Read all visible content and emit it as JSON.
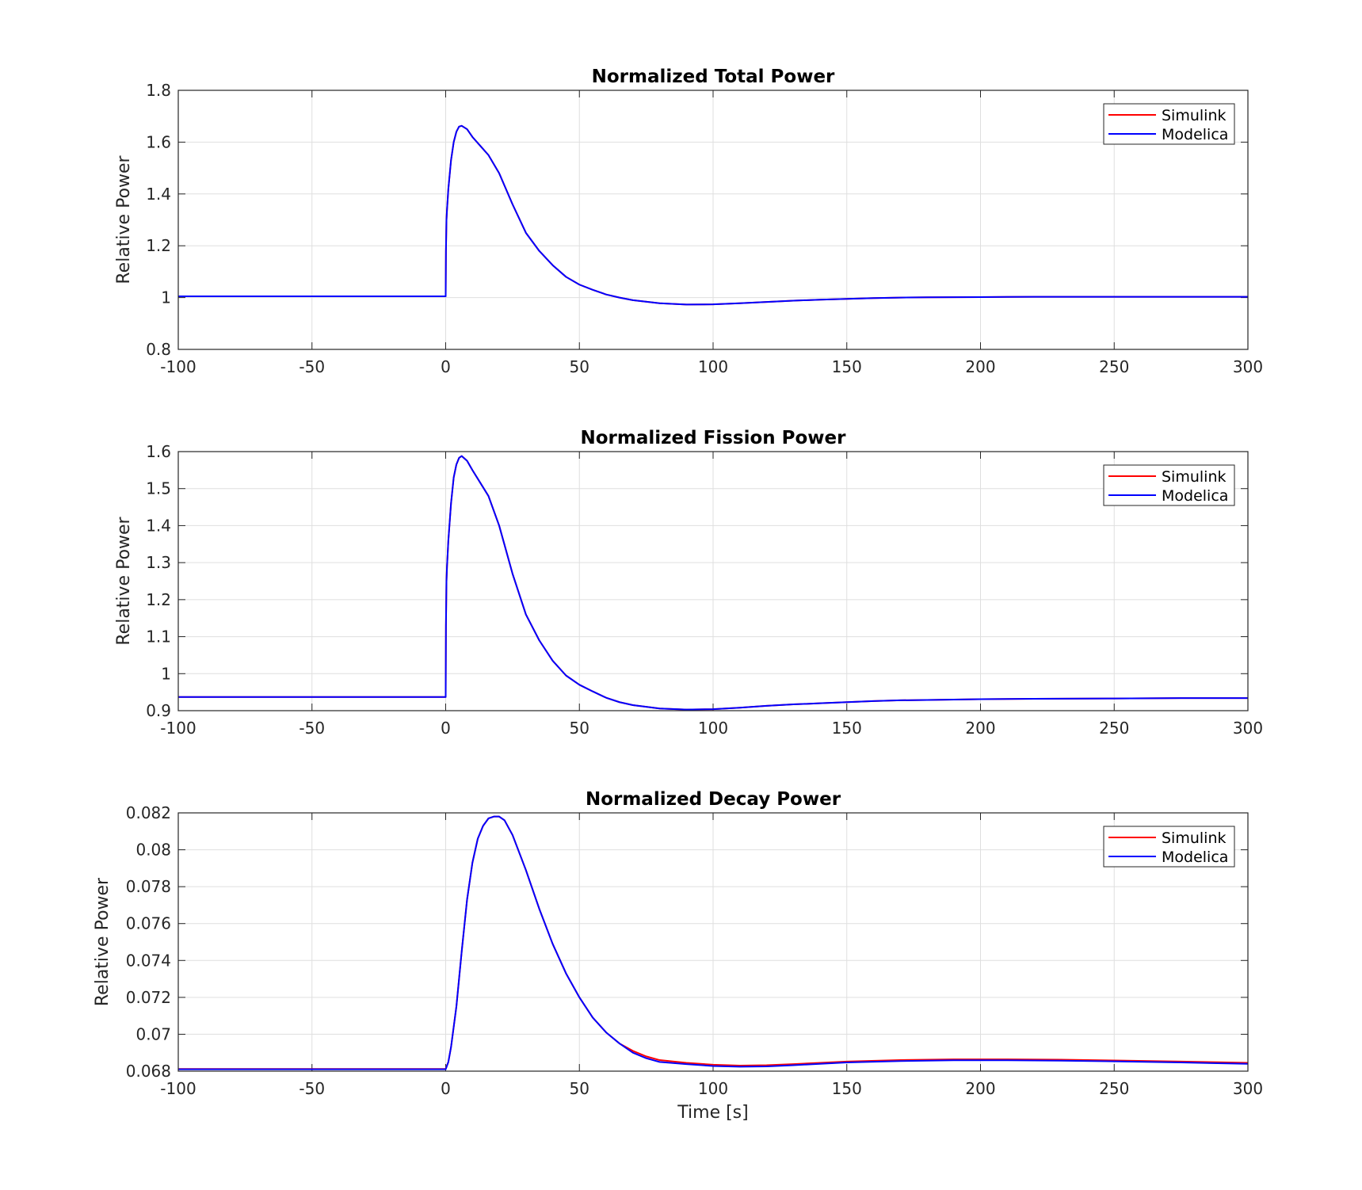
{
  "figure": {
    "xlabel": "Time [s]"
  },
  "chart_data": [
    {
      "type": "line",
      "title": "Normalized Total Power",
      "xlabel": "",
      "ylabel": "Relative Power",
      "xlim": [
        -100,
        300
      ],
      "ylim": [
        0.8,
        1.8
      ],
      "xticks": [
        "-100",
        "-50",
        "0",
        "50",
        "100",
        "150",
        "200",
        "250",
        "300"
      ],
      "yticks": [
        "0.8",
        "1",
        "1.2",
        "1.4",
        "1.6",
        "1.8"
      ],
      "grid": true,
      "legend_position": "top-right",
      "x": [
        -100,
        -50,
        -0.1,
        0,
        0.1,
        0.3,
        0.5,
        1,
        2,
        3,
        4,
        5,
        6,
        8,
        10,
        13,
        16,
        20,
        25,
        30,
        35,
        40,
        45,
        50,
        55,
        60,
        65,
        70,
        80,
        90,
        100,
        110,
        120,
        130,
        140,
        150,
        160,
        170,
        180,
        200,
        220,
        250,
        275,
        300
      ],
      "series": [
        {
          "name": "Simulink",
          "color": "#ff0000",
          "values": [
            1.005,
            1.005,
            1.005,
            1.005,
            1.18,
            1.3,
            1.34,
            1.42,
            1.53,
            1.6,
            1.64,
            1.66,
            1.663,
            1.65,
            1.62,
            1.585,
            1.55,
            1.48,
            1.36,
            1.25,
            1.18,
            1.125,
            1.08,
            1.05,
            1.03,
            1.012,
            1.0,
            0.99,
            0.978,
            0.973,
            0.974,
            0.978,
            0.983,
            0.988,
            0.992,
            0.995,
            0.998,
            1.0,
            1.001,
            1.002,
            1.003,
            1.003,
            1.003,
            1.003
          ]
        },
        {
          "name": "Modelica",
          "color": "#0000ff",
          "values": [
            1.005,
            1.005,
            1.005,
            1.005,
            1.18,
            1.3,
            1.34,
            1.42,
            1.53,
            1.6,
            1.64,
            1.66,
            1.663,
            1.65,
            1.62,
            1.585,
            1.55,
            1.48,
            1.36,
            1.25,
            1.18,
            1.125,
            1.08,
            1.05,
            1.03,
            1.012,
            1.0,
            0.99,
            0.978,
            0.973,
            0.974,
            0.978,
            0.983,
            0.988,
            0.992,
            0.995,
            0.998,
            1.0,
            1.001,
            1.002,
            1.003,
            1.003,
            1.003,
            1.003
          ]
        }
      ]
    },
    {
      "type": "line",
      "title": "Normalized Fission Power",
      "xlabel": "",
      "ylabel": "Relative Power",
      "xlim": [
        -100,
        300
      ],
      "ylim": [
        0.9,
        1.6
      ],
      "xticks": [
        "-100",
        "-50",
        "0",
        "50",
        "100",
        "150",
        "200",
        "250",
        "300"
      ],
      "yticks": [
        "0.9",
        "1",
        "1.1",
        "1.2",
        "1.3",
        "1.4",
        "1.5",
        "1.6"
      ],
      "grid": true,
      "legend_position": "top-right",
      "x": [
        -100,
        -50,
        -0.1,
        0,
        0.1,
        0.3,
        0.5,
        1,
        2,
        3,
        4,
        5,
        6,
        8,
        10,
        13,
        16,
        20,
        25,
        30,
        35,
        40,
        45,
        50,
        55,
        60,
        65,
        70,
        80,
        90,
        100,
        110,
        120,
        130,
        140,
        150,
        160,
        170,
        180,
        200,
        220,
        250,
        275,
        300
      ],
      "series": [
        {
          "name": "Simulink",
          "color": "#ff0000",
          "values": [
            0.937,
            0.937,
            0.937,
            0.937,
            1.13,
            1.25,
            1.29,
            1.36,
            1.46,
            1.53,
            1.565,
            1.583,
            1.588,
            1.575,
            1.55,
            1.515,
            1.48,
            1.4,
            1.27,
            1.16,
            1.09,
            1.035,
            0.995,
            0.97,
            0.952,
            0.935,
            0.923,
            0.915,
            0.906,
            0.903,
            0.904,
            0.908,
            0.913,
            0.917,
            0.92,
            0.923,
            0.926,
            0.928,
            0.929,
            0.931,
            0.932,
            0.933,
            0.934,
            0.934
          ]
        },
        {
          "name": "Modelica",
          "color": "#0000ff",
          "values": [
            0.937,
            0.937,
            0.937,
            0.937,
            1.13,
            1.25,
            1.29,
            1.36,
            1.46,
            1.53,
            1.565,
            1.583,
            1.588,
            1.575,
            1.55,
            1.515,
            1.48,
            1.4,
            1.27,
            1.16,
            1.09,
            1.035,
            0.995,
            0.97,
            0.952,
            0.935,
            0.923,
            0.915,
            0.906,
            0.903,
            0.904,
            0.908,
            0.913,
            0.917,
            0.92,
            0.923,
            0.926,
            0.928,
            0.929,
            0.931,
            0.932,
            0.933,
            0.934,
            0.934
          ]
        }
      ]
    },
    {
      "type": "line",
      "title": "Normalized Decay Power",
      "xlabel": "Time [s]",
      "ylabel": "Relative Power",
      "xlim": [
        -100,
        300
      ],
      "ylim": [
        0.068,
        0.082
      ],
      "xticks": [
        "-100",
        "-50",
        "0",
        "50",
        "100",
        "150",
        "200",
        "250",
        "300"
      ],
      "yticks": [
        "0.068",
        "0.07",
        "0.072",
        "0.074",
        "0.076",
        "0.078",
        "0.08",
        "0.082"
      ],
      "grid": true,
      "legend_position": "top-right",
      "x": [
        -100,
        -50,
        0,
        1,
        2,
        4,
        6,
        8,
        10,
        12,
        14,
        16,
        18,
        20,
        22,
        25,
        30,
        35,
        40,
        45,
        50,
        55,
        60,
        65,
        70,
        75,
        80,
        90,
        100,
        110,
        120,
        130,
        140,
        150,
        170,
        190,
        210,
        230,
        250,
        275,
        300
      ],
      "series": [
        {
          "name": "Simulink",
          "color": "#ff0000",
          "values": [
            0.06812,
            0.06812,
            0.06812,
            0.0685,
            0.0693,
            0.0715,
            0.0745,
            0.0773,
            0.0793,
            0.0806,
            0.0813,
            0.0817,
            0.0818,
            0.0818,
            0.0816,
            0.0808,
            0.0789,
            0.0768,
            0.0749,
            0.0733,
            0.072,
            0.0709,
            0.0701,
            0.0695,
            0.0691,
            0.0688,
            0.0686,
            0.06845,
            0.06835,
            0.0683,
            0.06832,
            0.06838,
            0.06845,
            0.06852,
            0.0686,
            0.06864,
            0.06864,
            0.06862,
            0.06858,
            0.06852,
            0.06845
          ]
        },
        {
          "name": "Modelica",
          "color": "#0000ff",
          "values": [
            0.0681,
            0.0681,
            0.0681,
            0.0685,
            0.0693,
            0.0715,
            0.0745,
            0.0773,
            0.0793,
            0.0806,
            0.0813,
            0.0817,
            0.0818,
            0.0818,
            0.0816,
            0.0808,
            0.0789,
            0.0768,
            0.0749,
            0.0733,
            0.072,
            0.0709,
            0.0701,
            0.0695,
            0.069,
            0.0687,
            0.0685,
            0.06838,
            0.06828,
            0.06824,
            0.06826,
            0.06832,
            0.0684,
            0.06847,
            0.06855,
            0.06859,
            0.06859,
            0.06857,
            0.06853,
            0.06847,
            0.0684
          ]
        }
      ]
    }
  ]
}
